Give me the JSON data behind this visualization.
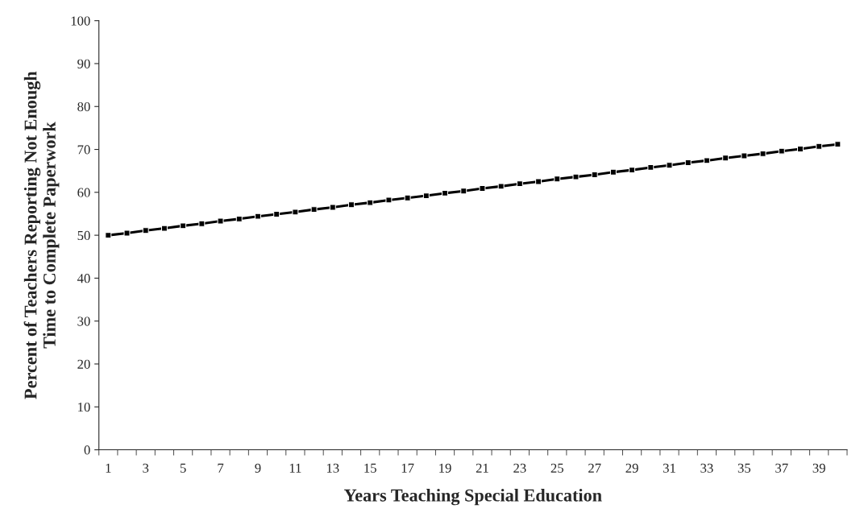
{
  "chart_data": {
    "type": "line",
    "xlabel": "Years Teaching Special Education",
    "ylabel": "Percent of Teachers Reporting Not Enough\nTime to Complete Paperwork",
    "categories": [
      "1",
      null,
      "3",
      null,
      "5",
      null,
      "7",
      null,
      "9",
      null,
      "11",
      null,
      "13",
      null,
      "15",
      null,
      "17",
      null,
      "19",
      null,
      "21",
      null,
      "23",
      null,
      "25",
      null,
      "27",
      null,
      "29",
      null,
      "31",
      null,
      "33",
      null,
      "35",
      null,
      "37",
      null,
      "39",
      null
    ],
    "series": [
      {
        "color": "#000000",
        "values": [
          50.0,
          50.5,
          51.1,
          51.6,
          52.2,
          52.7,
          53.3,
          53.8,
          54.4,
          54.9,
          55.4,
          56.0,
          56.5,
          57.1,
          57.6,
          58.2,
          58.7,
          59.2,
          59.8,
          60.3,
          60.9,
          61.4,
          62.0,
          62.5,
          63.1,
          63.6,
          64.1,
          64.7,
          65.2,
          65.8,
          66.3,
          66.9,
          67.4,
          68.0,
          68.5,
          69.0,
          69.6,
          70.1,
          70.7,
          71.2
        ]
      }
    ],
    "ylim": [
      0,
      100
    ],
    "yticks": [
      0,
      10,
      20,
      30,
      40,
      50,
      60,
      70,
      80,
      90,
      100
    ],
    "grid": false,
    "legend": false,
    "marker": "square",
    "line_style": "solid"
  }
}
